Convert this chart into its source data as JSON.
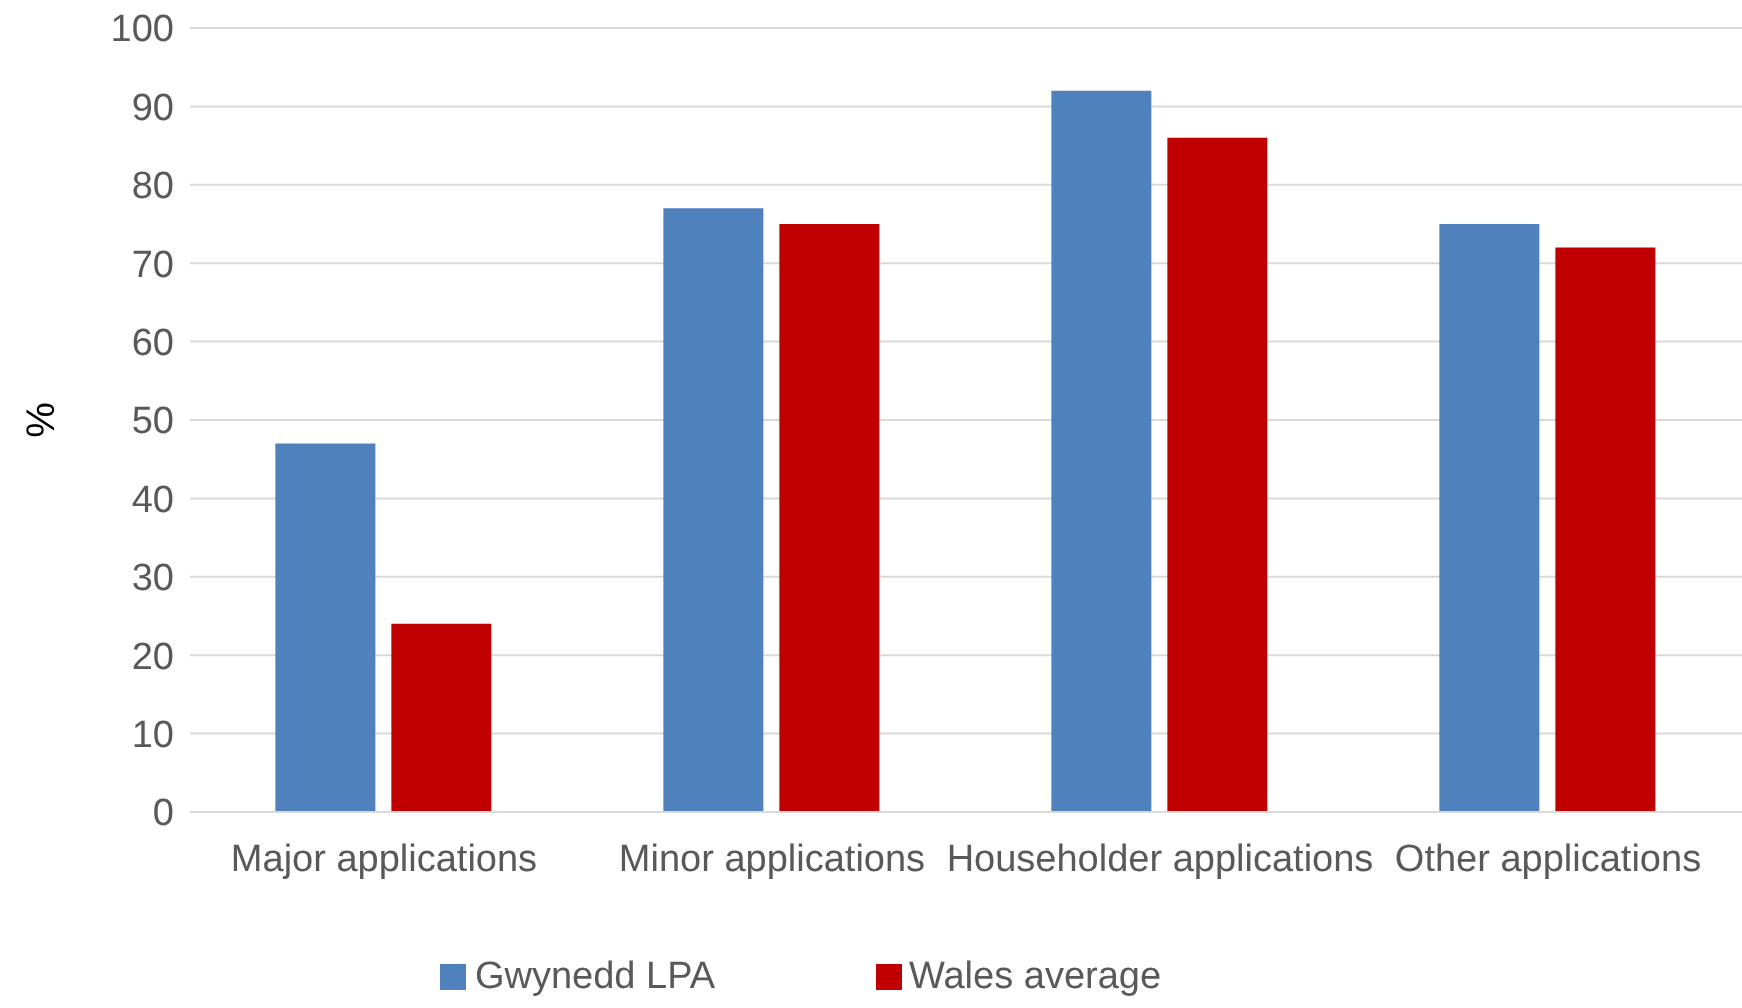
{
  "chart_data": {
    "type": "bar",
    "ylabel": "%",
    "categories": [
      "Major applications",
      "Minor applications",
      "Householder applications",
      "Other applications"
    ],
    "series": [
      {
        "name": "Gwynedd LPA",
        "color": "#4f81bd",
        "values": [
          47,
          77,
          92,
          75
        ]
      },
      {
        "name": "Wales average",
        "color": "#c00000",
        "values": [
          24,
          75,
          86,
          72
        ]
      }
    ],
    "ylim": [
      0,
      100
    ],
    "yticks": [
      0,
      10,
      20,
      30,
      40,
      50,
      60,
      70,
      80,
      90,
      100
    ],
    "grid": "y",
    "legend": "bottom"
  }
}
